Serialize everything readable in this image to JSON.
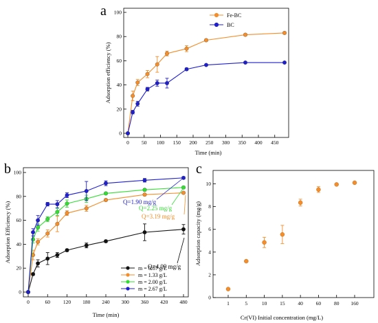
{
  "chart_data": [
    {
      "panel": "a",
      "type": "line",
      "xlabel": "Time (min)",
      "ylabel": "Adsorption efficiency (%)",
      "xlim": [
        0,
        480
      ],
      "ylim": [
        0,
        100
      ],
      "xticks": [
        0,
        50,
        100,
        150,
        200,
        250,
        300,
        350,
        400,
        450
      ],
      "yticks": [
        0,
        20,
        40,
        60,
        80,
        100
      ],
      "legend_position": "top-right",
      "x": [
        0,
        15,
        30,
        60,
        90,
        120,
        180,
        240,
        360,
        480
      ],
      "series": [
        {
          "name": "Fe-BC",
          "color": "#F28E2B",
          "values": [
            0,
            31,
            42,
            49,
            57,
            66,
            70,
            77,
            81.5,
            83
          ],
          "errors": [
            0,
            4,
            2.5,
            3,
            6.5,
            2,
            2.5,
            1,
            1,
            1
          ]
        },
        {
          "name": "BC",
          "color": "#1F1FCC",
          "values": [
            0,
            17.5,
            24.5,
            36.5,
            41.5,
            41.5,
            53,
            56.5,
            58.5,
            58.5
          ],
          "errors": [
            0,
            1.5,
            2,
            1.5,
            2.5,
            4,
            1,
            0.5,
            0.5,
            0.5
          ]
        }
      ]
    },
    {
      "panel": "b",
      "type": "line",
      "xlabel": "Time (min)",
      "ylabel": "Adsorption Efficiency (%)",
      "xlim": [
        0,
        480
      ],
      "ylim": [
        0,
        100
      ],
      "xticks": [
        0,
        60,
        120,
        180,
        240,
        300,
        360,
        420,
        480
      ],
      "yticks": [
        0,
        20,
        40,
        60,
        80,
        100
      ],
      "legend_position": "bottom-right",
      "x": [
        0,
        15,
        30,
        60,
        90,
        120,
        180,
        240,
        360,
        480
      ],
      "series": [
        {
          "name": "m = 0.67 g/L",
          "color": "#111111",
          "values": [
            0,
            15,
            24,
            28,
            31,
            35,
            39,
            42.5,
            50,
            52.5
          ],
          "errors": [
            0,
            1,
            3,
            5,
            2,
            1,
            2,
            1,
            7,
            4
          ]
        },
        {
          "name": "m = 1.33 g/L",
          "color": "#F28E2B",
          "values": [
            0,
            31,
            42,
            49,
            57,
            66,
            70,
            77,
            81.5,
            83
          ],
          "errors": [
            0,
            4,
            2.5,
            3,
            6.5,
            2,
            2.5,
            1,
            1,
            1
          ]
        },
        {
          "name": "m = 2.00 g/L",
          "color": "#33DD33",
          "values": [
            0,
            44,
            54,
            61,
            67,
            74,
            78,
            82.5,
            85.5,
            87.5
          ],
          "errors": [
            0,
            3,
            3,
            2,
            3,
            3,
            3,
            1,
            1,
            1
          ]
        },
        {
          "name": "m = 2.67 g/L",
          "color": "#1F1FCC",
          "values": [
            0,
            50,
            60,
            73.5,
            73.5,
            81,
            84.5,
            91,
            93.5,
            95.5
          ],
          "errors": [
            0,
            3,
            4,
            1.5,
            3,
            2,
            8,
            2,
            1.5,
            1
          ]
        }
      ],
      "annotations": [
        "Q=1.90 mg/g",
        "Q=2.25 mg/g",
        "Q=3.19 mg/g",
        "Q=4.09 mg/g"
      ]
    },
    {
      "panel": "c",
      "type": "scatter",
      "xlabel": "Cr(VI) Initial concentration (mg/L)",
      "ylabel": "Adsorption capacity (mg/g)",
      "ylim": [
        0,
        11
      ],
      "yticks": [
        0,
        2,
        4,
        6,
        8,
        10
      ],
      "categories": [
        "1",
        "5",
        "10",
        "15",
        "40",
        "60",
        "80",
        "160"
      ],
      "series": [
        {
          "name": "",
          "color": "#F28E2B",
          "values": [
            0.75,
            3.2,
            4.85,
            5.55,
            8.35,
            9.5,
            9.95,
            10.1
          ],
          "errors": [
            0,
            0,
            0.45,
            0.8,
            0.3,
            0.25,
            0,
            0
          ]
        }
      ]
    }
  ],
  "panel_labels": [
    "a",
    "b",
    "c"
  ]
}
